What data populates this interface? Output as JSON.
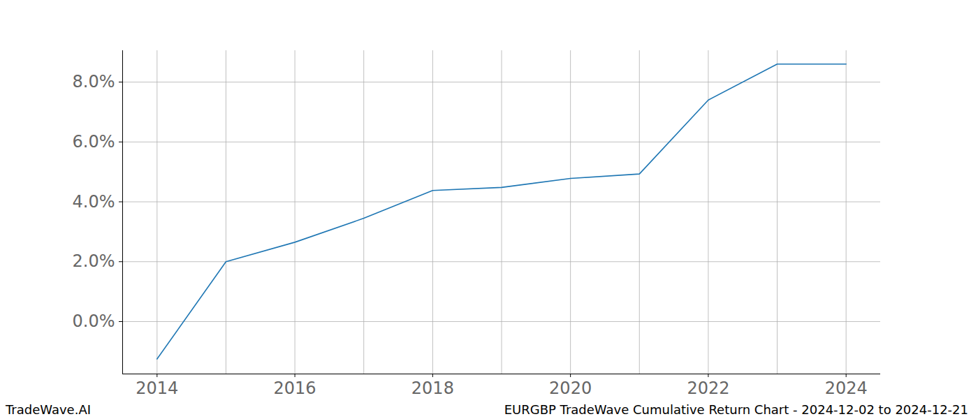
{
  "chart_data": {
    "type": "line",
    "caption": "EURGBP TradeWave Cumulative Return Chart - 2024-12-02 to 2024-12-21",
    "watermark": "TradeWave.AI",
    "x": [
      2014,
      2015,
      2016,
      2017,
      2018,
      2019,
      2020,
      2021,
      2022,
      2023,
      2024
    ],
    "values": [
      -1.25,
      2.0,
      2.65,
      3.45,
      4.38,
      4.48,
      4.78,
      4.93,
      7.4,
      8.6,
      8.6
    ],
    "color": "#1f77b4",
    "xlim": [
      2013.5,
      2024.5
    ],
    "xticks": [
      2014,
      2016,
      2018,
      2020,
      2022,
      2024
    ],
    "ylim": [
      -1.75,
      9.05
    ],
    "yticks": [
      {
        "value": 0,
        "label": "0.0%"
      },
      {
        "value": 2,
        "label": "2.0%"
      },
      {
        "value": 4,
        "label": "4.0%"
      },
      {
        "value": 6,
        "label": "6.0%"
      },
      {
        "value": 8,
        "label": "8.0%"
      }
    ],
    "grid": true
  }
}
